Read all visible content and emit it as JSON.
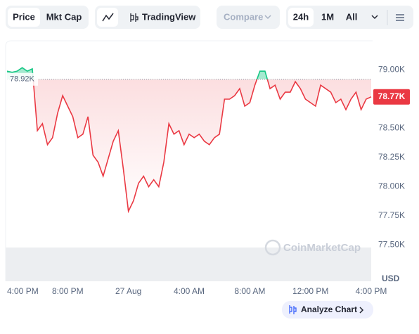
{
  "chart_data": {
    "type": "line",
    "categories": [
      "4:00 PM",
      null,
      null,
      null,
      null,
      null,
      null,
      null,
      null,
      null,
      null,
      null,
      "8:00 PM",
      null,
      null,
      null,
      null,
      null,
      null,
      null,
      null,
      null,
      null,
      null,
      "27 Aug",
      null,
      null,
      null,
      null,
      null,
      null,
      null,
      null,
      null,
      null,
      null,
      "4:00 AM",
      null,
      null,
      null,
      null,
      null,
      null,
      null,
      null,
      null,
      null,
      null,
      "8:00 AM",
      null,
      null,
      null,
      null,
      null,
      null,
      null,
      null,
      null,
      null,
      null,
      "12:00 PM",
      null,
      null,
      null,
      null,
      null,
      null,
      null,
      null,
      null,
      null,
      null,
      "4:00 PM"
    ],
    "values": [
      78990,
      78980,
      78990,
      79020,
      78990,
      79010,
      78480,
      78540,
      78360,
      78420,
      78630,
      78780,
      78690,
      78600,
      78420,
      78450,
      78600,
      78270,
      78210,
      78090,
      78240,
      78390,
      78480,
      78150,
      77790,
      77880,
      78030,
      78090,
      78000,
      78060,
      78000,
      78210,
      78540,
      78450,
      78480,
      78360,
      78450,
      78420,
      78450,
      78390,
      78360,
      78420,
      78450,
      78750,
      78750,
      78780,
      78840,
      78690,
      78720,
      78870,
      78990,
      78990,
      78840,
      78870,
      78750,
      78810,
      78810,
      78900,
      78840,
      78750,
      78720,
      78690,
      78870,
      78840,
      78810,
      78720,
      78750,
      78660,
      78750,
      78810,
      78660,
      78750,
      78770
    ],
    "up_color": "#16c784",
    "down_color": "#ea3943",
    "reference_line": {
      "value": 78920,
      "label": "78.92K"
    },
    "price_label": {
      "value": 78770,
      "label": "78.77K"
    },
    "ylim": [
      77190,
      79250
    ],
    "yticks": [
      {
        "value": 77500,
        "label": "77.50K"
      },
      {
        "value": 77750,
        "label": "77.75K"
      },
      {
        "value": 78000,
        "label": "78.00K"
      },
      {
        "value": 78250,
        "label": "78.25K"
      },
      {
        "value": 78500,
        "label": "78.50K"
      },
      {
        "value": 78750,
        "label": "78.75K"
      },
      {
        "value": 79000,
        "label": "79.00K"
      }
    ],
    "currency": "USD",
    "watermark": "CoinMarketCap"
  },
  "toolbar": {
    "metric_tabs": [
      "Price",
      "Mkt Cap"
    ],
    "tradingview": "TradingView",
    "compare": "Compare",
    "ranges": [
      "24h",
      "1M",
      "All"
    ]
  },
  "analyze_button": "Analyze Chart"
}
